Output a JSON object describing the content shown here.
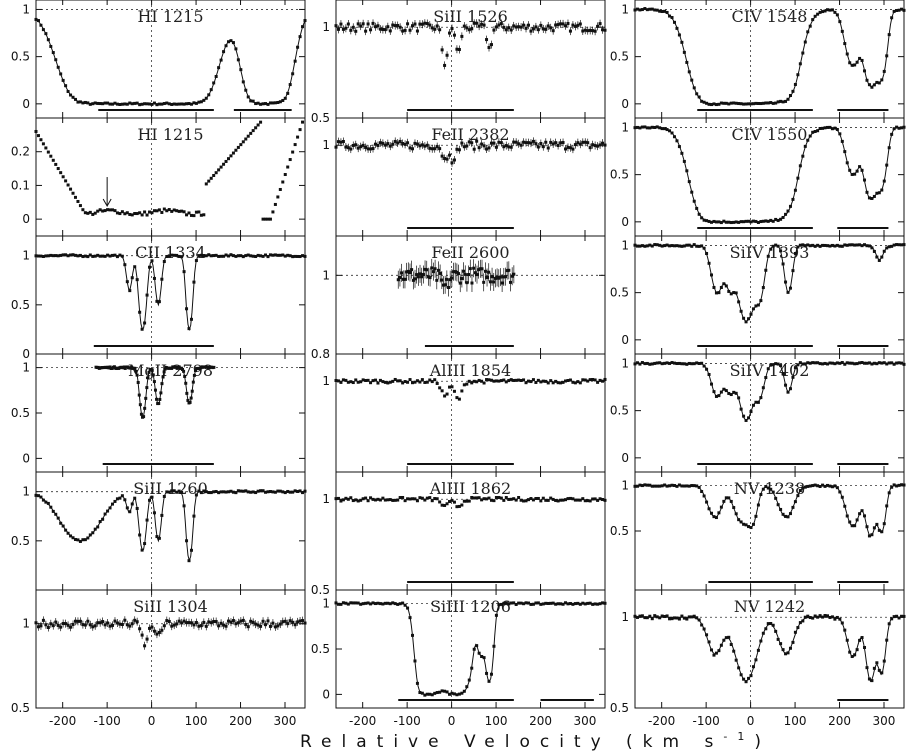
{
  "chart_data": {
    "type": "scatter",
    "xlabel": "Relative Velocity (km s",
    "xlabel_sup": "-1",
    "xlim": [
      -260,
      345
    ],
    "xticks": [
      -200,
      -100,
      0,
      100,
      200,
      300
    ],
    "panels": [
      {
        "id": "p00",
        "col": 0,
        "row": 0,
        "label": "HI 1215",
        "ylim": [
          -0.15,
          1.1
        ],
        "yticks": [
          0,
          0.5,
          1
        ],
        "ytick_labels": [
          "0",
          "0.5",
          "1"
        ],
        "fit": true,
        "style": "deep",
        "lines": [
          {
            "v": -100,
            "d": 1.0,
            "w": 55
          },
          {
            "v": -20,
            "d": 1.0,
            "w": 55
          },
          {
            "v": 60,
            "d": 1.0,
            "w": 45
          },
          {
            "v": 260,
            "d": 1.0,
            "w": 30
          }
        ],
        "bars": [
          [
            -120,
            140
          ],
          [
            185,
            315
          ]
        ],
        "xmin": -260,
        "xmax": 345,
        "arrow": null
      },
      {
        "id": "p01",
        "col": 1,
        "row": 0,
        "label": "SiII 1526",
        "ylim": [
          0.5,
          1.15
        ],
        "yticks": [
          0.5,
          1
        ],
        "ytick_labels": [
          "0.5",
          "1"
        ],
        "fit": false,
        "style": "noisy",
        "lines": [
          {
            "v": -15,
            "d": 0.2,
            "w": 6
          },
          {
            "v": 15,
            "d": 0.15,
            "w": 5
          },
          {
            "v": 85,
            "d": 0.12,
            "w": 5
          }
        ],
        "bars": [
          [
            -100,
            140
          ]
        ],
        "xmin": -260,
        "xmax": 345,
        "arrow": null
      },
      {
        "id": "p02",
        "col": 2,
        "row": 0,
        "label": "CIV 1548",
        "ylim": [
          -0.15,
          1.1
        ],
        "yticks": [
          0,
          0.5,
          1
        ],
        "ytick_labels": [
          "0",
          "0.5",
          "1"
        ],
        "fit": true,
        "style": "deep",
        "lines": [
          {
            "v": -60,
            "d": 1.0,
            "w": 40
          },
          {
            "v": 10,
            "d": 1.0,
            "w": 45
          },
          {
            "v": 80,
            "d": 0.7,
            "w": 20
          },
          {
            "v": 230,
            "d": 0.6,
            "w": 15
          },
          {
            "v": 270,
            "d": 0.8,
            "w": 12
          },
          {
            "v": 295,
            "d": 0.7,
            "w": 10
          }
        ],
        "bars": [
          [
            -120,
            140
          ],
          [
            195,
            310
          ]
        ],
        "xmin": -260,
        "xmax": 345,
        "arrow": null
      },
      {
        "id": "p10",
        "col": 0,
        "row": 1,
        "label": "HI 1215",
        "ylim": [
          -0.05,
          0.3
        ],
        "yticks": [
          0,
          0.1,
          0.2
        ],
        "ytick_labels": [
          "0",
          "0.1",
          "0.2"
        ],
        "fit": false,
        "style": "zoom",
        "lines": [],
        "bars": [],
        "xmin": -260,
        "xmax": 345,
        "arrow": -100
      },
      {
        "id": "p11",
        "col": 1,
        "row": 1,
        "label": "FeII 2382",
        "ylim": [
          0.5,
          1.15
        ],
        "yticks": [
          1
        ],
        "ytick_labels": [
          "1"
        ],
        "fit": false,
        "style": "noisy",
        "lines": [
          {
            "v": -15,
            "d": 0.08,
            "w": 6
          },
          {
            "v": 5,
            "d": 0.1,
            "w": 5
          }
        ],
        "bars": [
          [
            -100,
            140
          ]
        ],
        "xmin": -260,
        "xmax": 345,
        "arrow": null
      },
      {
        "id": "p12",
        "col": 2,
        "row": 1,
        "label": "CIV 1550",
        "ylim": [
          -0.15,
          1.1
        ],
        "yticks": [
          0,
          0.5,
          1
        ],
        "ytick_labels": [
          "0",
          "0.5",
          "1"
        ],
        "fit": true,
        "style": "deep",
        "lines": [
          {
            "v": -60,
            "d": 1.0,
            "w": 38
          },
          {
            "v": 10,
            "d": 1.0,
            "w": 42
          },
          {
            "v": 80,
            "d": 0.55,
            "w": 18
          },
          {
            "v": 230,
            "d": 0.5,
            "w": 14
          },
          {
            "v": 270,
            "d": 0.75,
            "w": 12
          },
          {
            "v": 295,
            "d": 0.6,
            "w": 10
          }
        ],
        "bars": [
          [
            -120,
            140
          ],
          [
            195,
            310
          ]
        ],
        "xmin": -260,
        "xmax": 345,
        "arrow": null
      },
      {
        "id": "p20",
        "col": 0,
        "row": 2,
        "label": "CII 1334",
        "ylim": [
          0,
          1.2
        ],
        "yticks": [
          0,
          0.5,
          1
        ],
        "ytick_labels": [
          "0",
          "0.5",
          "1"
        ],
        "fit": true,
        "style": "clean",
        "lines": [
          {
            "v": -50,
            "d": 0.35,
            "w": 6
          },
          {
            "v": -20,
            "d": 0.75,
            "w": 7
          },
          {
            "v": 15,
            "d": 0.5,
            "w": 6
          },
          {
            "v": 85,
            "d": 0.75,
            "w": 6
          }
        ],
        "bars": [
          [
            -130,
            140
          ]
        ],
        "xmin": -260,
        "xmax": 345,
        "arrow": null
      },
      {
        "id": "p21",
        "col": 1,
        "row": 2,
        "label": "FeII 2600",
        "ylim": [
          0.8,
          1.1
        ],
        "yticks": [
          0.8,
          1
        ],
        "ytick_labels": [
          "0.8",
          "1"
        ],
        "fit": false,
        "style": "errs",
        "lines": [
          {
            "v": -15,
            "d": 0.03,
            "w": 8
          }
        ],
        "bars": [
          [
            -60,
            140
          ]
        ],
        "xmin": -120,
        "xmax": 140,
        "arrow": null
      },
      {
        "id": "p22",
        "col": 2,
        "row": 2,
        "label": "SiIV 1393",
        "ylim": [
          -0.15,
          1.1
        ],
        "yticks": [
          0,
          0.5,
          1
        ],
        "ytick_labels": [
          "0",
          "0.5",
          "1"
        ],
        "fit": true,
        "style": "clean",
        "lines": [
          {
            "v": -75,
            "d": 0.5,
            "w": 12
          },
          {
            "v": -45,
            "d": 0.45,
            "w": 10
          },
          {
            "v": -10,
            "d": 0.8,
            "w": 14
          },
          {
            "v": 20,
            "d": 0.55,
            "w": 10
          },
          {
            "v": 85,
            "d": 0.5,
            "w": 8
          },
          {
            "v": 290,
            "d": 0.15,
            "w": 8
          }
        ],
        "bars": [
          [
            -120,
            140
          ],
          [
            195,
            310
          ]
        ],
        "xmin": -260,
        "xmax": 345,
        "arrow": null
      },
      {
        "id": "p30",
        "col": 0,
        "row": 3,
        "label": "MgII 2798",
        "ylim": [
          -0.15,
          1.15
        ],
        "yticks": [
          0,
          0.5,
          1
        ],
        "ytick_labels": [
          "0",
          "0.5",
          "1"
        ],
        "fit": true,
        "style": "clean",
        "lines": [
          {
            "v": -20,
            "d": 0.55,
            "w": 6
          },
          {
            "v": 15,
            "d": 0.4,
            "w": 6
          },
          {
            "v": 85,
            "d": 0.4,
            "w": 6
          }
        ],
        "bars": [
          [
            -110,
            140
          ]
        ],
        "xmin": -125,
        "xmax": 140,
        "arrow": null
      },
      {
        "id": "p31",
        "col": 1,
        "row": 3,
        "label": "AlIII 1854",
        "ylim": [
          0.5,
          1.15
        ],
        "yticks": [
          1
        ],
        "ytick_labels": [
          "1"
        ],
        "fit": false,
        "style": "clean",
        "lines": [
          {
            "v": -15,
            "d": 0.08,
            "w": 8
          },
          {
            "v": 15,
            "d": 0.1,
            "w": 8
          }
        ],
        "bars": [
          [
            -100,
            140
          ]
        ],
        "xmin": -260,
        "xmax": 345,
        "arrow": null
      },
      {
        "id": "p32",
        "col": 2,
        "row": 3,
        "label": "SiIV 1402",
        "ylim": [
          -0.15,
          1.1
        ],
        "yticks": [
          0,
          0.5,
          1
        ],
        "ytick_labels": [
          "0",
          "0.5",
          "1"
        ],
        "fit": true,
        "style": "clean",
        "lines": [
          {
            "v": -75,
            "d": 0.35,
            "w": 12
          },
          {
            "v": -45,
            "d": 0.3,
            "w": 10
          },
          {
            "v": -10,
            "d": 0.6,
            "w": 13
          },
          {
            "v": 20,
            "d": 0.35,
            "w": 10
          },
          {
            "v": 85,
            "d": 0.3,
            "w": 8
          }
        ],
        "bars": [
          [
            -120,
            140
          ],
          [
            195,
            310
          ]
        ],
        "xmin": -260,
        "xmax": 345,
        "arrow": null
      },
      {
        "id": "p40",
        "col": 0,
        "row": 4,
        "label": "SiII 1260",
        "ylim": [
          0,
          1.2
        ],
        "yticks": [
          0.5,
          1
        ],
        "ytick_labels": [
          "0.5",
          "1"
        ],
        "fit": true,
        "style": "clean",
        "lines": [
          {
            "v": -160,
            "d": 0.5,
            "w": 40
          },
          {
            "v": -50,
            "d": 0.2,
            "w": 6
          },
          {
            "v": -20,
            "d": 0.6,
            "w": 7
          },
          {
            "v": 15,
            "d": 0.5,
            "w": 6
          },
          {
            "v": 85,
            "d": 0.7,
            "w": 6
          }
        ],
        "bars": [],
        "xmin": -260,
        "xmax": 345,
        "arrow": null
      },
      {
        "id": "p41",
        "col": 1,
        "row": 4,
        "label": "AlIII 1862",
        "ylim": [
          0.5,
          1.15
        ],
        "yticks": [
          0.5,
          1
        ],
        "ytick_labels": [
          "0.5",
          "1"
        ],
        "fit": false,
        "style": "clean",
        "lines": [
          {
            "v": -15,
            "d": 0.04,
            "w": 8
          },
          {
            "v": 15,
            "d": 0.04,
            "w": 8
          }
        ],
        "bars": [
          [
            -100,
            140
          ]
        ],
        "xmin": -260,
        "xmax": 345,
        "arrow": null
      },
      {
        "id": "p42",
        "col": 2,
        "row": 4,
        "label": "NV 1238",
        "ylim": [
          -0.15,
          1.15
        ],
        "yticks": [
          0.5,
          1
        ],
        "ytick_labels": [
          "0.5",
          "1"
        ],
        "fit": true,
        "style": "clean",
        "lines": [
          {
            "v": -80,
            "d": 0.35,
            "w": 15
          },
          {
            "v": -20,
            "d": 0.4,
            "w": 16
          },
          {
            "v": 5,
            "d": 0.35,
            "w": 10
          },
          {
            "v": 80,
            "d": 0.35,
            "w": 16
          },
          {
            "v": 230,
            "d": 0.45,
            "w": 14
          },
          {
            "v": 270,
            "d": 0.55,
            "w": 10
          },
          {
            "v": 295,
            "d": 0.5,
            "w": 8
          }
        ],
        "bars": [
          [
            -95,
            140
          ],
          [
            195,
            310
          ]
        ],
        "xmin": -260,
        "xmax": 345,
        "arrow": null
      },
      {
        "id": "p50",
        "col": 0,
        "row": 5,
        "label": "SiII 1304",
        "ylim": [
          0.5,
          1.2
        ],
        "yticks": [
          0.5,
          1
        ],
        "ytick_labels": [
          "0.5",
          "1"
        ],
        "fit": false,
        "style": "noisy",
        "lines": [
          {
            "v": -15,
            "d": 0.12,
            "w": 7
          },
          {
            "v": 15,
            "d": 0.08,
            "w": 6
          }
        ],
        "bars": [],
        "xmin": -260,
        "xmax": 345,
        "arrow": null
      },
      {
        "id": "p51",
        "col": 1,
        "row": 5,
        "label": "SiIII 1206",
        "ylim": [
          -0.15,
          1.15
        ],
        "yticks": [
          0,
          0.5,
          1
        ],
        "ytick_labels": [
          "0",
          "0.5",
          "1"
        ],
        "fit": true,
        "style": "deep",
        "lines": [
          {
            "v": -55,
            "d": 1.0,
            "w": 14
          },
          {
            "v": -25,
            "d": 0.9,
            "w": 12
          },
          {
            "v": 10,
            "d": 1.0,
            "w": 15
          },
          {
            "v": 40,
            "d": 0.6,
            "w": 8
          },
          {
            "v": 65,
            "d": 0.55,
            "w": 8
          },
          {
            "v": 85,
            "d": 0.85,
            "w": 7
          }
        ],
        "bars": [
          [
            -120,
            140
          ],
          [
            200,
            320
          ]
        ],
        "xmin": -260,
        "xmax": 345,
        "arrow": null
      },
      {
        "id": "p52",
        "col": 2,
        "row": 5,
        "label": "NV 1242",
        "ylim": [
          0.5,
          1.15
        ],
        "yticks": [
          0.5,
          1
        ],
        "ytick_labels": [
          "0.5",
          "1"
        ],
        "fit": true,
        "style": "clean",
        "lines": [
          {
            "v": -80,
            "d": 0.2,
            "w": 16
          },
          {
            "v": -10,
            "d": 0.35,
            "w": 22
          },
          {
            "v": 80,
            "d": 0.2,
            "w": 16
          },
          {
            "v": 230,
            "d": 0.22,
            "w": 12
          },
          {
            "v": 270,
            "d": 0.35,
            "w": 10
          },
          {
            "v": 295,
            "d": 0.3,
            "w": 8
          }
        ],
        "bars": [
          [
            195,
            310
          ]
        ],
        "xmin": -260,
        "xmax": 345,
        "arrow": null
      }
    ]
  }
}
